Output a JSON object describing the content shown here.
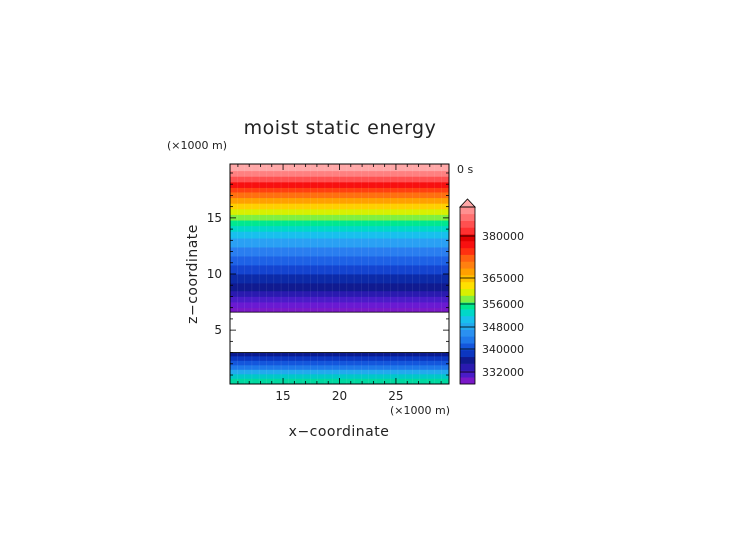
{
  "chart_data": {
    "type": "heatmap",
    "title": "moist static energy",
    "time_label": "0 s",
    "xlabel": "x−coordinate",
    "ylabel": "z−coordinate",
    "x_unit": "(×1000 m)",
    "y_unit": "(×1000 m)",
    "xlim": [
      10.3,
      29.7
    ],
    "ylim": [
      0.2,
      19.8
    ],
    "x_ticks": [
      15,
      20,
      25
    ],
    "y_ticks": [
      5,
      10,
      15
    ],
    "grid": false,
    "missing_band_z": [
      3.0,
      6.6
    ],
    "layers": [
      {
        "z": [
          0.2,
          0.7
        ],
        "color": "#00d8a0"
      },
      {
        "z": [
          0.7,
          1.1
        ],
        "color": "#00c8c8"
      },
      {
        "z": [
          1.1,
          1.5
        ],
        "color": "#22aaee"
      },
      {
        "z": [
          1.5,
          1.9
        ],
        "color": "#1f78ea"
      },
      {
        "z": [
          1.9,
          2.3
        ],
        "color": "#1456dc"
      },
      {
        "z": [
          2.3,
          2.7
        ],
        "color": "#0c36c0"
      },
      {
        "z": [
          2.7,
          3.0
        ],
        "color": "#0a1a90"
      },
      {
        "z": [
          6.6,
          7.0
        ],
        "color": "#7a18c8"
      },
      {
        "z": [
          7.0,
          7.5
        ],
        "color": "#6a1ad2"
      },
      {
        "z": [
          7.5,
          8.0
        ],
        "color": "#4a1cc8"
      },
      {
        "z": [
          8.0,
          8.5
        ],
        "color": "#2a1ab0"
      },
      {
        "z": [
          8.5,
          9.2
        ],
        "color": "#101a90"
      },
      {
        "z": [
          9.2,
          10.0
        ],
        "color": "#0c2aa8"
      },
      {
        "z": [
          10.0,
          10.8
        ],
        "color": "#1444d0"
      },
      {
        "z": [
          10.8,
          11.6
        ],
        "color": "#1e62e6"
      },
      {
        "z": [
          11.6,
          12.4
        ],
        "color": "#2a7ef0"
      },
      {
        "z": [
          12.4,
          13.2
        ],
        "color": "#2aa0f4"
      },
      {
        "z": [
          13.2,
          13.8
        ],
        "color": "#18c0ee"
      },
      {
        "z": [
          13.8,
          14.3
        ],
        "color": "#00d8c8"
      },
      {
        "z": [
          14.3,
          14.8
        ],
        "color": "#00e890"
      },
      {
        "z": [
          14.8,
          15.3
        ],
        "color": "#80f040"
      },
      {
        "z": [
          15.3,
          15.8
        ],
        "color": "#d8f000"
      },
      {
        "z": [
          15.8,
          16.3
        ],
        "color": "#ffd000"
      },
      {
        "z": [
          16.3,
          16.8
        ],
        "color": "#ffa000"
      },
      {
        "z": [
          16.8,
          17.3
        ],
        "color": "#ff7010"
      },
      {
        "z": [
          17.3,
          17.7
        ],
        "color": "#ff4010"
      },
      {
        "z": [
          17.7,
          18.2
        ],
        "color": "#f81010"
      },
      {
        "z": [
          18.2,
          18.7
        ],
        "color": "#ff5050"
      },
      {
        "z": [
          18.7,
          19.2
        ],
        "color": "#ff8080"
      },
      {
        "z": [
          19.2,
          19.8
        ],
        "color": "#ffa8a8"
      }
    ],
    "colorbar": {
      "labels": [
        {
          "value": 380000,
          "text": "380000"
        },
        {
          "value": 365000,
          "text": "365000"
        },
        {
          "value": 356000,
          "text": "356000"
        },
        {
          "value": 348000,
          "text": "348000"
        },
        {
          "value": 340000,
          "text": "340000"
        },
        {
          "value": 332000,
          "text": "332000"
        }
      ],
      "segments": [
        {
          "color": "#7a18c8"
        },
        {
          "color": "#4a1cc8"
        },
        {
          "color": "#2a1ab0"
        },
        {
          "color": "#101a90"
        },
        {
          "color": "#0c36c0"
        },
        {
          "color": "#1456dc"
        },
        {
          "color": "#1f78ea"
        },
        {
          "color": "#2a90f0"
        },
        {
          "color": "#22aaee"
        },
        {
          "color": "#18c0ee"
        },
        {
          "color": "#00d8c8"
        },
        {
          "color": "#00e890"
        },
        {
          "color": "#80f040"
        },
        {
          "color": "#d8f000"
        },
        {
          "color": "#ffe000"
        },
        {
          "color": "#ffc000"
        },
        {
          "color": "#ffa000"
        },
        {
          "color": "#ff8010"
        },
        {
          "color": "#ff6010"
        },
        {
          "color": "#ff3010"
        },
        {
          "color": "#f81010"
        },
        {
          "color": "#e00000"
        },
        {
          "color": "#ff3030"
        },
        {
          "color": "#ff5050"
        },
        {
          "color": "#ff7070"
        },
        {
          "color": "#ff9090"
        }
      ],
      "arrow_color": "#ffa8a8"
    }
  }
}
